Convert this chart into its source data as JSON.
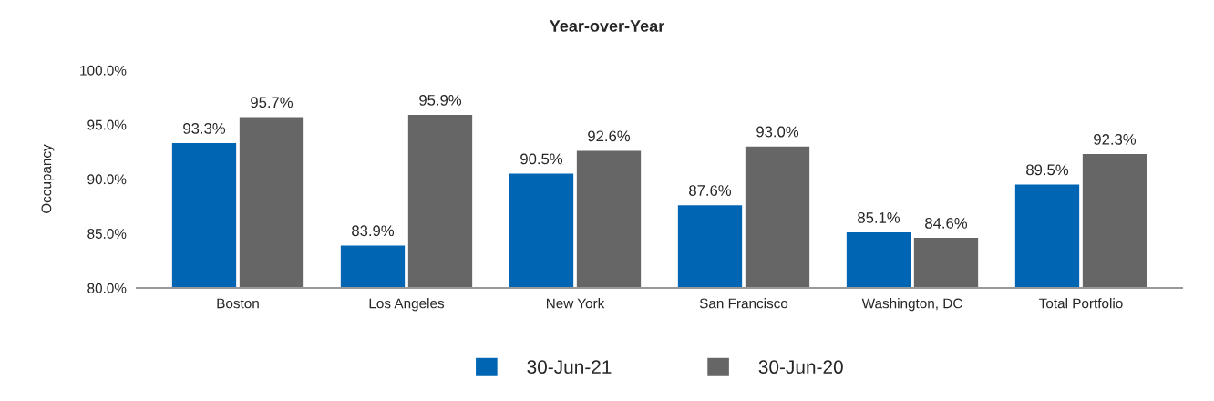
{
  "chart_data": {
    "type": "bar",
    "title": "Year-over-Year",
    "ylabel": "Occupancy",
    "categories": [
      "Boston",
      "Los Angeles",
      "New York",
      "San Francisco",
      "Washington, DC",
      "Total Portfolio"
    ],
    "series": [
      {
        "name": "30-Jun-21",
        "color": "#0066b3",
        "values": [
          93.3,
          83.9,
          90.5,
          87.6,
          85.1,
          89.5
        ],
        "value_labels": [
          "93.3%",
          "83.9%",
          "90.5%",
          "87.6%",
          "85.1%",
          "89.5%"
        ]
      },
      {
        "name": "30-Jun-20",
        "color": "#666666",
        "values": [
          95.7,
          95.9,
          92.6,
          93.0,
          84.6,
          92.3
        ],
        "value_labels": [
          "95.7%",
          "95.9%",
          "92.6%",
          "93.0%",
          "84.6%",
          "92.3%"
        ]
      }
    ],
    "ylim": [
      80,
      100
    ],
    "yticks": [
      {
        "value": 80,
        "label": "80.0%"
      },
      {
        "value": 85,
        "label": "85.0%"
      },
      {
        "value": 90,
        "label": "90.0%"
      },
      {
        "value": 95,
        "label": "95.0%"
      },
      {
        "value": 100,
        "label": "100.0%"
      }
    ],
    "grid": false,
    "legend": "bottom"
  }
}
